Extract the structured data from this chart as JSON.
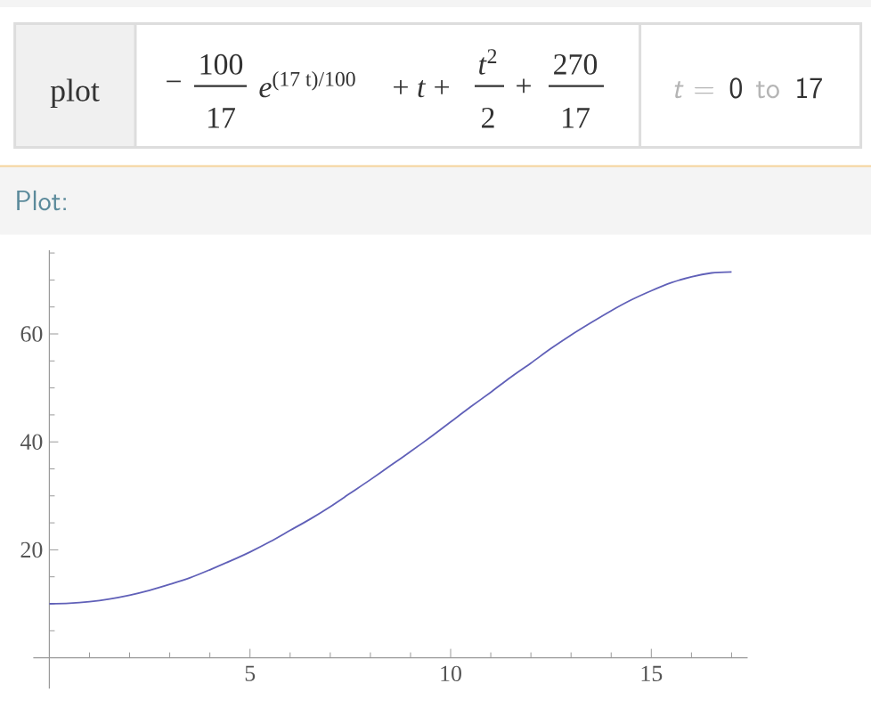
{
  "chart_data": {
    "type": "line",
    "title": "Plot:",
    "annotations": [
      "plot",
      "−",
      "100",
      "17",
      "*e*$^{(17 t)/100}$",
      "+ *t* +",
      "*t*$^{2}$",
      "2",
      "+",
      "270",
      "17",
      "*t* =",
      "0",
      "to",
      "17"
    ],
    "x": [
      0,
      0.5,
      1,
      1.5,
      2,
      2.5,
      3,
      3.5,
      4,
      4.5,
      5,
      5.5,
      6,
      6.5,
      7,
      7.5,
      8,
      8.5,
      9,
      9.5,
      10,
      10.5,
      11,
      11.5,
      12,
      12.5,
      13,
      13.5,
      14,
      14.5,
      15,
      15.5,
      16,
      16.5,
      17
    ],
    "series": [
      {
        "color": "#6060b8",
        "values": [
          10.0,
          10.1,
          10.4,
          10.9,
          11.6,
          12.5,
          13.6,
          14.8,
          16.3,
          17.9,
          19.6,
          21.5,
          23.6,
          25.7,
          28.0,
          30.5,
          33.0,
          35.6,
          38.2,
          40.9,
          43.7,
          46.5,
          49.2,
          52.0,
          54.6,
          57.3,
          59.8,
          62.1,
          64.3,
          66.3,
          68.0,
          69.5,
          70.6,
          71.3,
          71.5
        ]
      }
    ],
    "xlim": [
      -0.4,
      17.4
    ],
    "ylim": [
      -5.7,
      75.5
    ],
    "xticks": [
      {
        "value": 1,
        "label": null
      },
      {
        "value": 2,
        "label": null
      },
      {
        "value": 3,
        "label": null
      },
      {
        "value": 4,
        "label": null
      },
      5,
      {
        "value": 6,
        "label": null
      },
      {
        "value": 7,
        "label": null
      },
      {
        "value": 8,
        "label": null
      },
      {
        "value": 9,
        "label": null
      },
      10,
      {
        "value": 11,
        "label": null
      },
      {
        "value": 12,
        "label": null
      },
      {
        "value": 13,
        "label": null
      },
      {
        "value": 14,
        "label": null
      },
      15,
      {
        "value": 16,
        "label": null
      },
      {
        "value": 17,
        "label": null
      }
    ],
    "yticks": [
      {
        "value": 5,
        "label": null
      },
      {
        "value": 10,
        "label": null
      },
      {
        "value": 15,
        "label": null
      },
      20,
      {
        "value": 25,
        "label": null
      },
      {
        "value": 30,
        "label": null
      },
      {
        "value": 35,
        "label": null
      },
      40,
      {
        "value": 45,
        "label": null
      },
      {
        "value": 50,
        "label": null
      },
      {
        "value": 55,
        "label": null
      },
      60,
      {
        "value": 65,
        "label": null
      },
      {
        "value": 70,
        "label": null
      },
      {
        "value": 75,
        "label": null
      }
    ]
  }
}
